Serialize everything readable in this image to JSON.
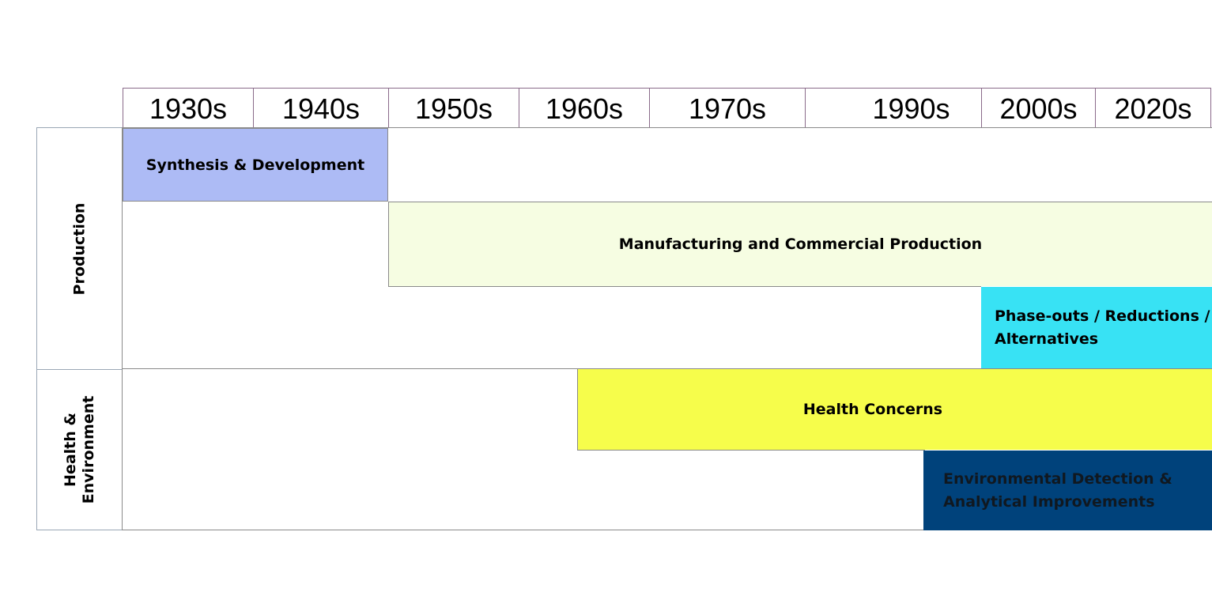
{
  "decades": [
    "1930s",
    "1940s",
    "1950s",
    "1960s",
    "1970s",
    "1990s",
    "2000s",
    "2020s"
  ],
  "categories": [
    {
      "label": "Production"
    },
    {
      "label_line1": "Health &",
      "label_line2": "Environment"
    }
  ],
  "bars": {
    "synthesis": {
      "label": "Synthesis & Development",
      "color": "#adbbf5"
    },
    "manufacturing": {
      "label": "Manufacturing and Commercial Production",
      "color": "#f6fde2"
    },
    "phaseouts": {
      "line1": "Phase-outs / Reductions /",
      "line2": "Alternatives",
      "color": "#38e2f4"
    },
    "health": {
      "label": "Health Concerns",
      "color": "#f6fd4b"
    },
    "environmental": {
      "line1": "Environmental Detection &",
      "line2": "Analytical Improvements",
      "color": "#00427b"
    }
  }
}
